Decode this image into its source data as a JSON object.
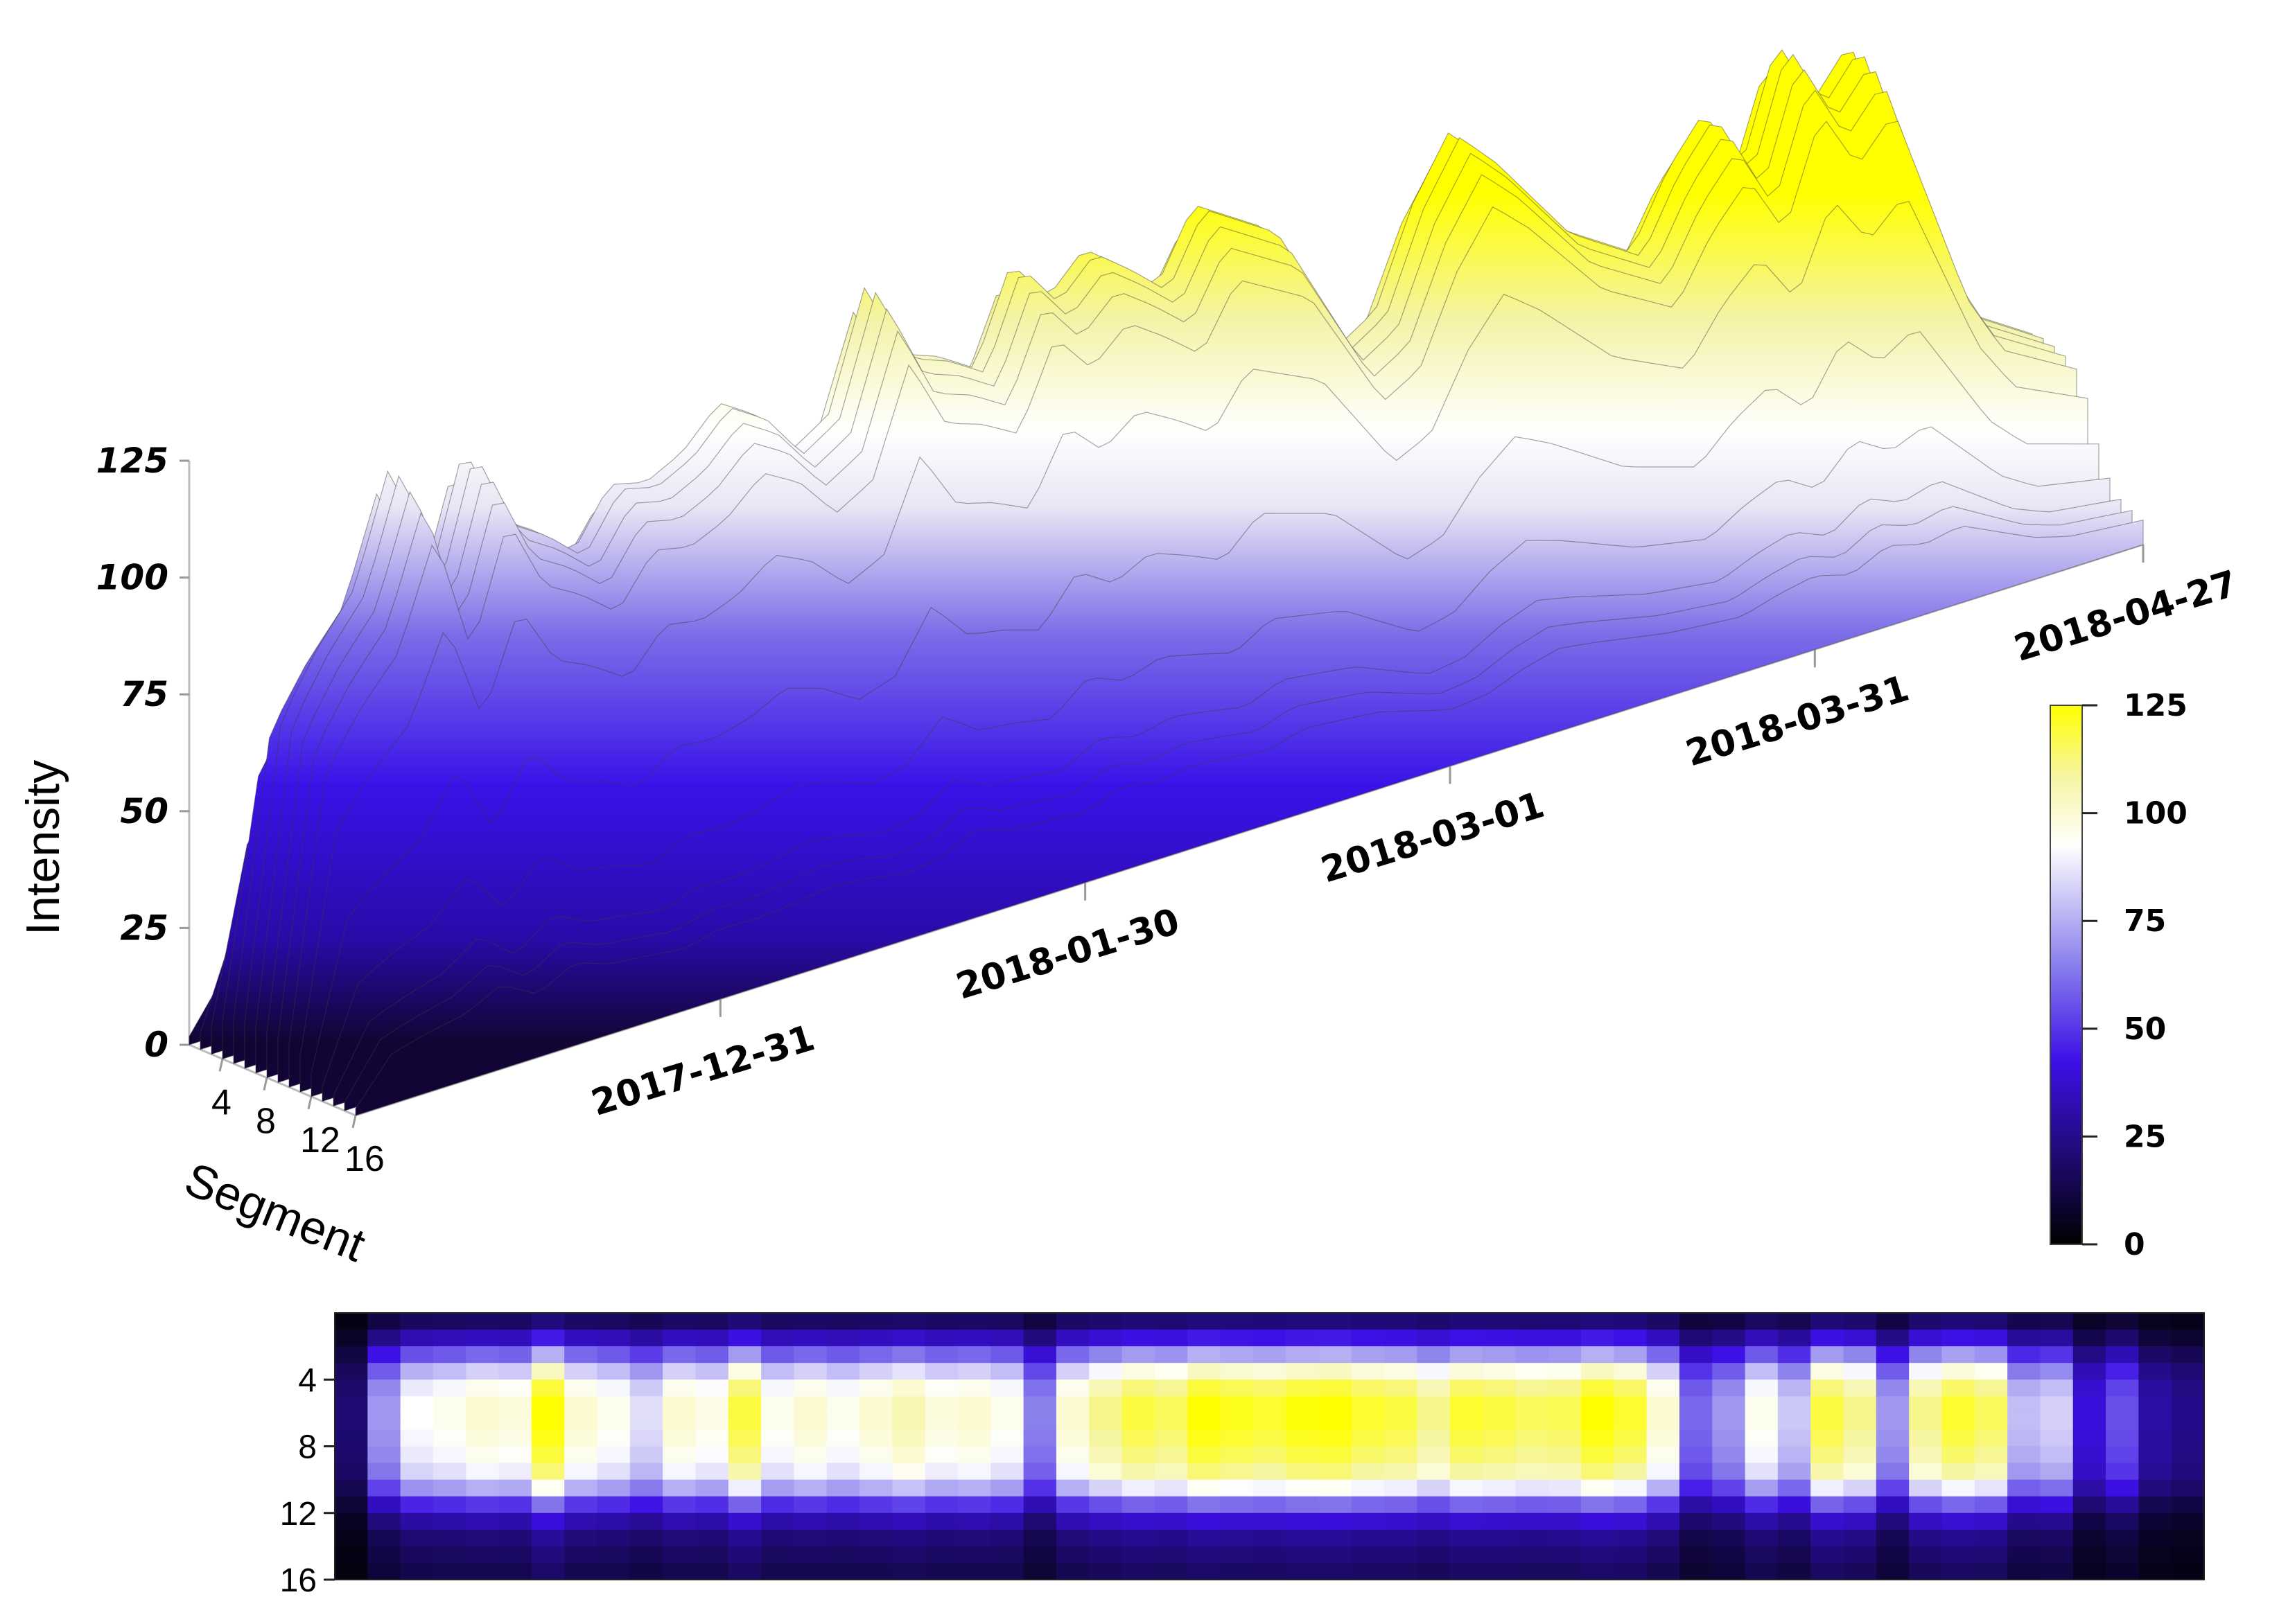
{
  "chart_data": [
    {
      "type": "surface3d",
      "zlabel": "Intensity",
      "ylabel": "Segment",
      "z_ticks": [
        "0",
        "25",
        "50",
        "75",
        "100",
        "125"
      ],
      "zlim": [
        0,
        125
      ],
      "y_ticks": [
        "4",
        "8",
        "12",
        "16"
      ],
      "ylim": [
        1,
        16
      ],
      "date_ticks": [
        "2017-12-31",
        "2018-01-30",
        "2018-03-01",
        "2018-03-31",
        "2018-04-27"
      ],
      "xlim": [
        "2017-12-01",
        "2018-04-27"
      ],
      "colormap": [
        "#000000",
        "#2a0aa8",
        "#4a1aff",
        "#a79df0",
        "#ffffff",
        "#f7f7a0",
        "#ffff00"
      ],
      "peak_profile": {
        "dates": [
          "2017-12-01",
          "2017-12-04",
          "2017-12-07",
          "2017-12-10",
          "2017-12-13",
          "2017-12-16",
          "2017-12-19",
          "2017-12-22",
          "2017-12-25",
          "2017-12-28",
          "2017-12-31",
          "2018-01-03",
          "2018-01-06",
          "2018-01-09",
          "2018-01-12",
          "2018-01-15",
          "2018-01-18",
          "2018-01-21",
          "2018-01-24",
          "2018-01-27",
          "2018-01-30",
          "2018-02-02",
          "2018-02-05",
          "2018-02-08",
          "2018-02-11",
          "2018-02-14",
          "2018-02-17",
          "2018-02-20",
          "2018-02-23",
          "2018-02-26",
          "2018-03-01",
          "2018-03-04",
          "2018-03-07",
          "2018-03-10",
          "2018-03-13",
          "2018-03-16",
          "2018-03-19",
          "2018-03-22",
          "2018-03-25",
          "2018-03-28",
          "2018-03-31",
          "2018-04-03",
          "2018-04-06",
          "2018-04-09",
          "2018-04-12",
          "2018-04-15",
          "2018-04-18",
          "2018-04-21",
          "2018-04-24",
          "2018-04-27"
        ],
        "values": [
          10,
          72,
          85,
          95,
          120,
          90,
          118,
          100,
          95,
          88,
          100,
          98,
          102,
          110,
          105,
          95,
          100,
          125,
          108,
          105,
          100,
          120,
          110,
          118,
          112,
          105,
          120,
          115,
          110,
          95,
          80,
          85,
          105,
          118,
          110,
          100,
          90,
          85,
          80,
          95,
          105,
          90,
          115,
          100,
          110,
          85,
          60,
          45,
          40,
          35
        ]
      }
    },
    {
      "type": "colorbar",
      "ticks": [
        "0",
        "25",
        "50",
        "75",
        "100",
        "125"
      ],
      "range": [
        0,
        125
      ]
    },
    {
      "type": "heatmap",
      "y_ticks": [
        "4",
        "8",
        "12",
        "16"
      ],
      "rows": 16,
      "columns": 57,
      "segment_profile": [
        0.18,
        0.35,
        0.6,
        0.82,
        0.95,
        1.0,
        1.0,
        0.98,
        0.95,
        0.9,
        0.75,
        0.5,
        0.32,
        0.22,
        0.18,
        0.15
      ],
      "time_profile": [
        20,
        70,
        92,
        95,
        100,
        98,
        125,
        100,
        95,
        85,
        100,
        96,
        118,
        95,
        100,
        95,
        100,
        105,
        98,
        100,
        95,
        65,
        100,
        110,
        118,
        115,
        125,
        122,
        120,
        124,
        125,
        120,
        118,
        110,
        120,
        118,
        115,
        116,
        125,
        120,
        100,
        60,
        70,
        95,
        80,
        118,
        110,
        70,
        110,
        120,
        115,
        78,
        82,
        40,
        55,
        30,
        25
      ]
    }
  ]
}
